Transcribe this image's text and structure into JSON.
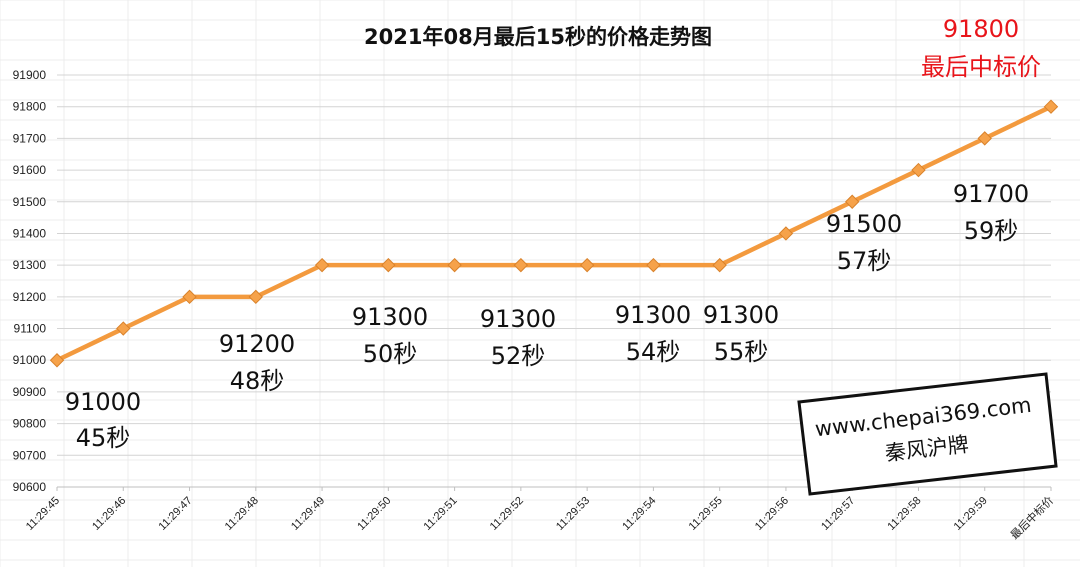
{
  "chart_data": {
    "type": "line",
    "title": "2021年08月最后15秒的价格走势图",
    "categories": [
      "11:29:45",
      "11:29:46",
      "11:29:47",
      "11:29:48",
      "11:29:49",
      "11:29:50",
      "11:29:51",
      "11:29:52",
      "11:29:53",
      "11:29:54",
      "11:29:55",
      "11:29:56",
      "11:29:57",
      "11:29:58",
      "11:29:59",
      "最后中标价"
    ],
    "series": [
      {
        "values": [
          91000,
          91100,
          91200,
          91200,
          91300,
          91300,
          91300,
          91300,
          91300,
          91300,
          91300,
          91400,
          91500,
          91600,
          91700,
          91800
        ]
      }
    ],
    "ylim": [
      90600,
      91900
    ],
    "yticks": [
      90600,
      90700,
      90800,
      90900,
      91000,
      91100,
      91200,
      91300,
      91400,
      91500,
      91600,
      91700,
      91800,
      91900
    ],
    "grid": true,
    "line_color": "#f39a3e",
    "marker_color": "#f6a24a",
    "annotations": [
      {
        "price": "91000",
        "time": "45秒"
      },
      {
        "price": "91200",
        "time": "48秒"
      },
      {
        "price": "91300",
        "time": "50秒"
      },
      {
        "price": "91300",
        "time": "52秒"
      },
      {
        "price": "91300",
        "time": "54秒"
      },
      {
        "price": "91300",
        "time": "55秒"
      },
      {
        "price": "91500",
        "time": "57秒"
      },
      {
        "price": "91700",
        "time": "59秒"
      },
      {
        "price": "91800",
        "time": "最后中标价",
        "color": "#e8141a"
      }
    ]
  },
  "watermark": {
    "url": "www.chepai369.com",
    "name": "秦风沪牌"
  }
}
